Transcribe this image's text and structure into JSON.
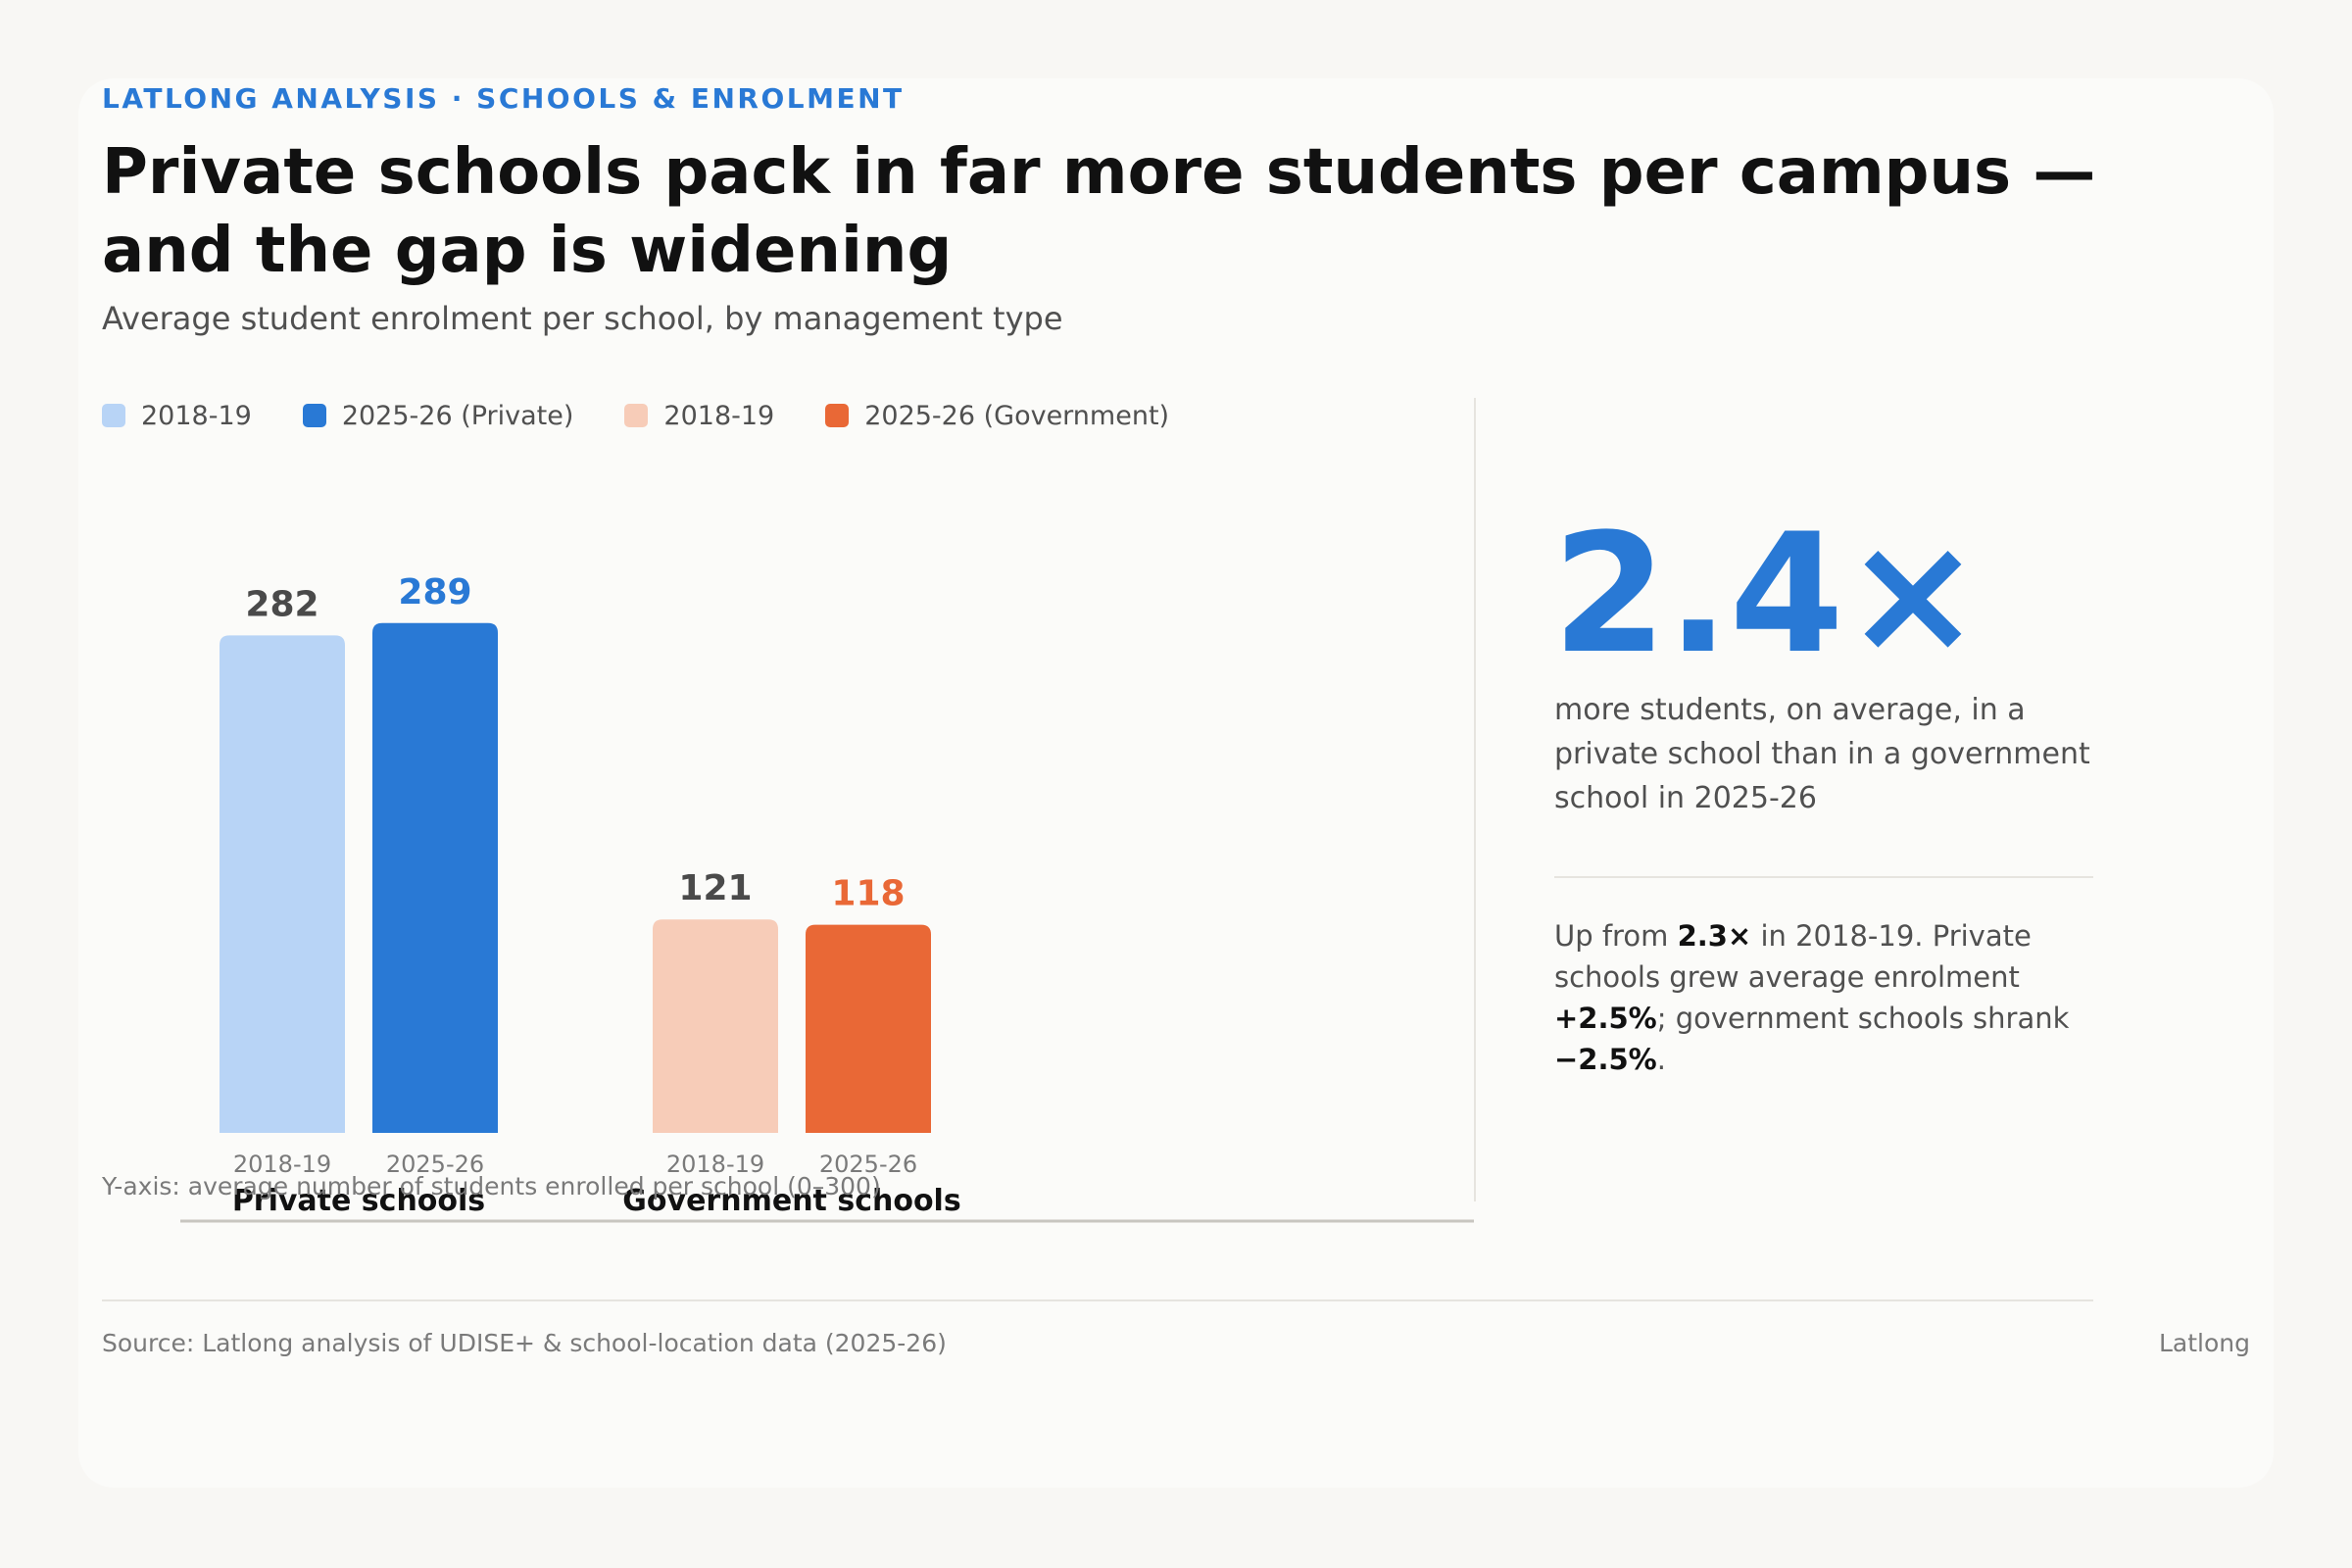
{
  "header": {
    "eyebrow": "LATLONG ANALYSIS · SCHOOLS & ENROLMENT",
    "title": "Private schools pack in far more students per campus — and the gap is widening",
    "subtitle": "Average student enrolment per school, by management type"
  },
  "legend": [
    {
      "label": "2018-19",
      "color": "#b8d4f6"
    },
    {
      "label": "2025-26 (Private)",
      "color": "#2979d5"
    },
    {
      "label": "2018-19",
      "color": "#f7ccb8"
    },
    {
      "label": "2025-26 (Government)",
      "color": "#e96836"
    }
  ],
  "chart_data": {
    "type": "bar",
    "categories": [
      "Private schools",
      "Government schools"
    ],
    "bar_labels": [
      "2018-19",
      "2025-26"
    ],
    "ylim": [
      0,
      300
    ],
    "grid": false,
    "groups": [
      {
        "name": "Private schools",
        "bars": [
          {
            "period": "2018-19",
            "value": 282,
            "color": "#b8d4f6",
            "label_color": "#4a4a4a"
          },
          {
            "period": "2025-26",
            "value": 289,
            "color": "#2979d5",
            "label_color": "#2979d5"
          }
        ]
      },
      {
        "name": "Government schools",
        "bars": [
          {
            "period": "2018-19",
            "value": 121,
            "color": "#f7ccb8",
            "label_color": "#4a4a4a"
          },
          {
            "period": "2025-26",
            "value": 118,
            "color": "#e96836",
            "label_color": "#e96836"
          }
        ]
      }
    ],
    "axis_note": "Y-axis: average number of students enrolled per school (0–300)"
  },
  "stat": {
    "value": "2.4×",
    "description": "more students, on average, in a private school than in a government school in 2025-26",
    "note": {
      "p1": "Up from ",
      "b1": "2.3×",
      "p2": " in 2018-19. Private schools grew average enrolment ",
      "b2": "+2.5%",
      "p3": "; government schools shrank ",
      "b3": "−2.5%",
      "p4": "."
    }
  },
  "footer": {
    "source": "Source: Latlong analysis of UDISE+ & school-location data (2025-26)",
    "brand": "Latlong"
  },
  "colors": {
    "accent": "#2979d5",
    "government_accent": "#e96836",
    "baseline": "#c8c6c0"
  }
}
